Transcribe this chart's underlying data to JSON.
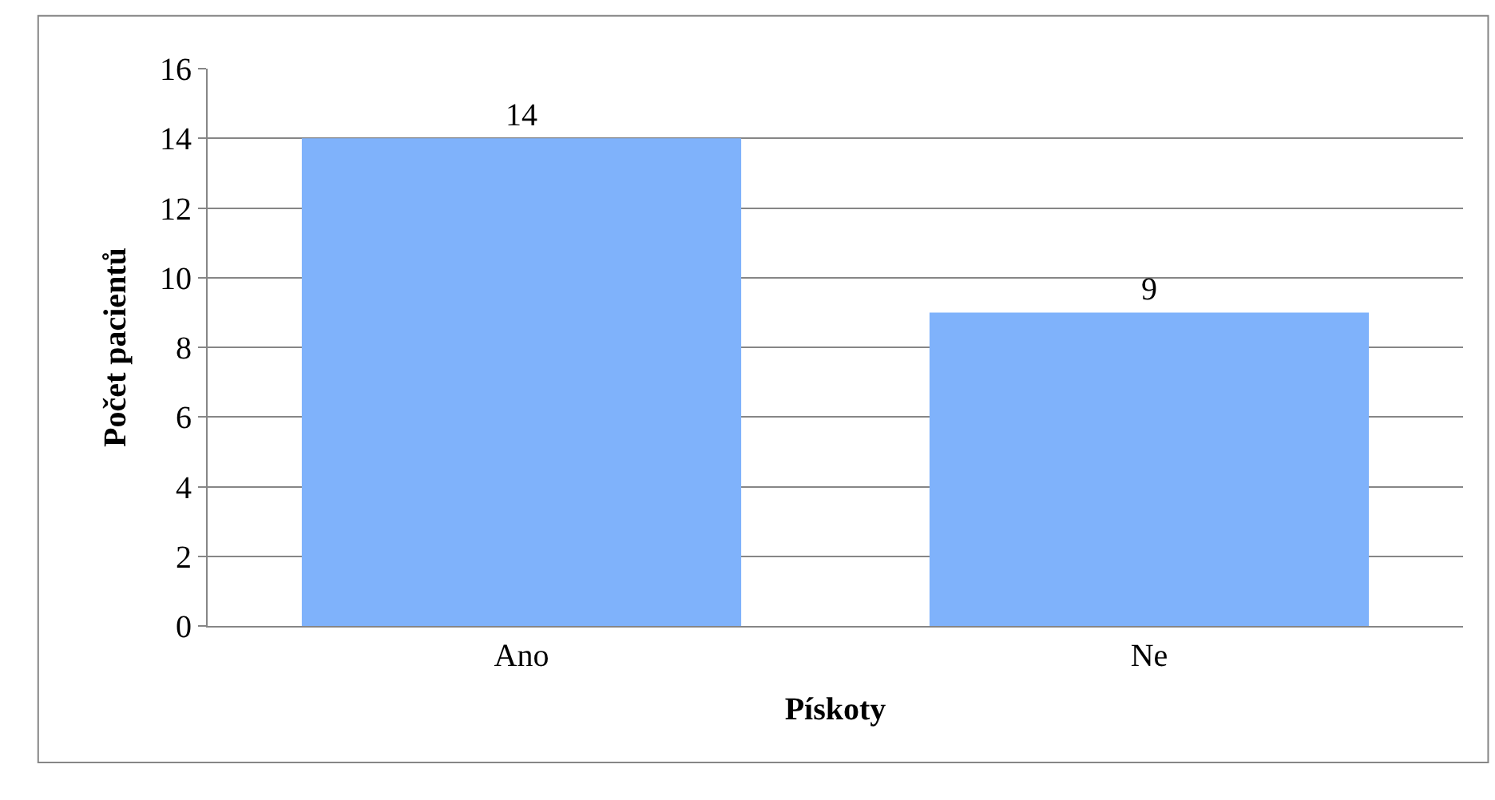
{
  "chart_data": {
    "type": "bar",
    "xlabel": "Pískoty",
    "ylabel": "Počet pacientů",
    "categories": [
      "Ano",
      "Ne"
    ],
    "values": [
      14,
      9
    ],
    "color": "#7fb2fb",
    "ylim": [
      0,
      16
    ],
    "yticks": [
      0,
      2,
      4,
      6,
      8,
      10,
      12,
      14,
      16
    ],
    "grid": "y",
    "data_labels": true,
    "legend": false
  }
}
